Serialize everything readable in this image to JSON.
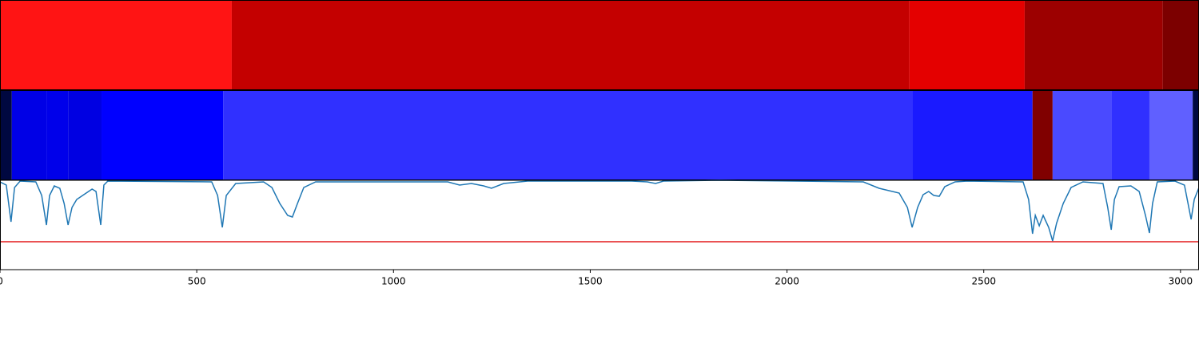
{
  "chart_data": [
    {
      "type": "segments",
      "xlim": [
        0,
        3047
      ],
      "bins": [
        0,
        589,
        2311,
        2604,
        2955,
        3047
      ],
      "colors": [
        "#ff1414",
        "#c40000",
        "#e40000",
        "#9c0000",
        "#7c0000"
      ]
    },
    {
      "type": "segments",
      "xlim": [
        0,
        3047
      ],
      "bins": [
        0,
        30,
        118,
        173,
        258,
        567,
        2318,
        2624,
        2675,
        2824,
        2921,
        3031,
        3047
      ],
      "colors": [
        "#000840",
        "#0000e6",
        "#0000ea",
        "#0000e2",
        "#0000ff",
        "#3030ff",
        "#1a1aff",
        "#800000",
        "#4a4aff",
        "#3030ff",
        "#6060ff",
        "#000840"
      ]
    },
    {
      "type": "line",
      "xlim": [
        0,
        3047
      ],
      "ylim": [
        0,
        112
      ],
      "xticks": [
        0,
        500,
        1000,
        1500,
        2000,
        2500,
        3000
      ],
      "x": [
        0,
        16,
        28,
        37,
        51,
        91,
        106,
        118,
        126,
        138,
        152,
        163,
        173,
        183,
        195,
        213,
        234,
        244,
        256,
        264,
        274,
        538,
        553,
        565,
        575,
        599,
        670,
        691,
        711,
        731,
        743,
        756,
        772,
        802,
        1138,
        1168,
        1198,
        1229,
        1249,
        1280,
        1341,
        1605,
        1645,
        1666,
        1686,
        1828,
        2194,
        2234,
        2285,
        2306,
        2318,
        2332,
        2346,
        2360,
        2373,
        2387,
        2401,
        2427,
        2458,
        2600,
        2614,
        2624,
        2631,
        2641,
        2651,
        2665,
        2675,
        2685,
        2702,
        2722,
        2752,
        2803,
        2815,
        2824,
        2832,
        2844,
        2874,
        2895,
        2911,
        2921,
        2929,
        2941,
        2986,
        3010,
        3027,
        3035,
        3047
      ],
      "series": [
        {
          "color": "#1f77b4",
          "values": [
            110,
            106,
            60,
            103,
            111,
            110,
            93,
            56,
            93,
            105,
            102,
            83,
            56,
            78,
            88,
            94,
            101,
            98,
            56,
            106,
            111,
            110,
            93,
            53,
            93,
            108,
            110,
            103,
            83,
            68,
            66,
            83,
            103,
            110,
            110,
            106,
            108,
            105,
            102,
            108,
            111,
            111,
            110,
            108,
            111,
            112,
            110,
            102,
            96,
            78,
            53,
            78,
            94,
            98,
            93,
            92,
            104,
            110,
            111,
            110,
            88,
            45,
            68,
            55,
            68,
            53,
            36,
            58,
            83,
            103,
            110,
            108,
            78,
            50,
            88,
            104,
            105,
            98,
            68,
            46,
            83,
            110,
            111,
            106,
            63,
            88,
            103
          ]
        }
      ],
      "hline": 35,
      "hline_color": "#e41a1c"
    }
  ]
}
